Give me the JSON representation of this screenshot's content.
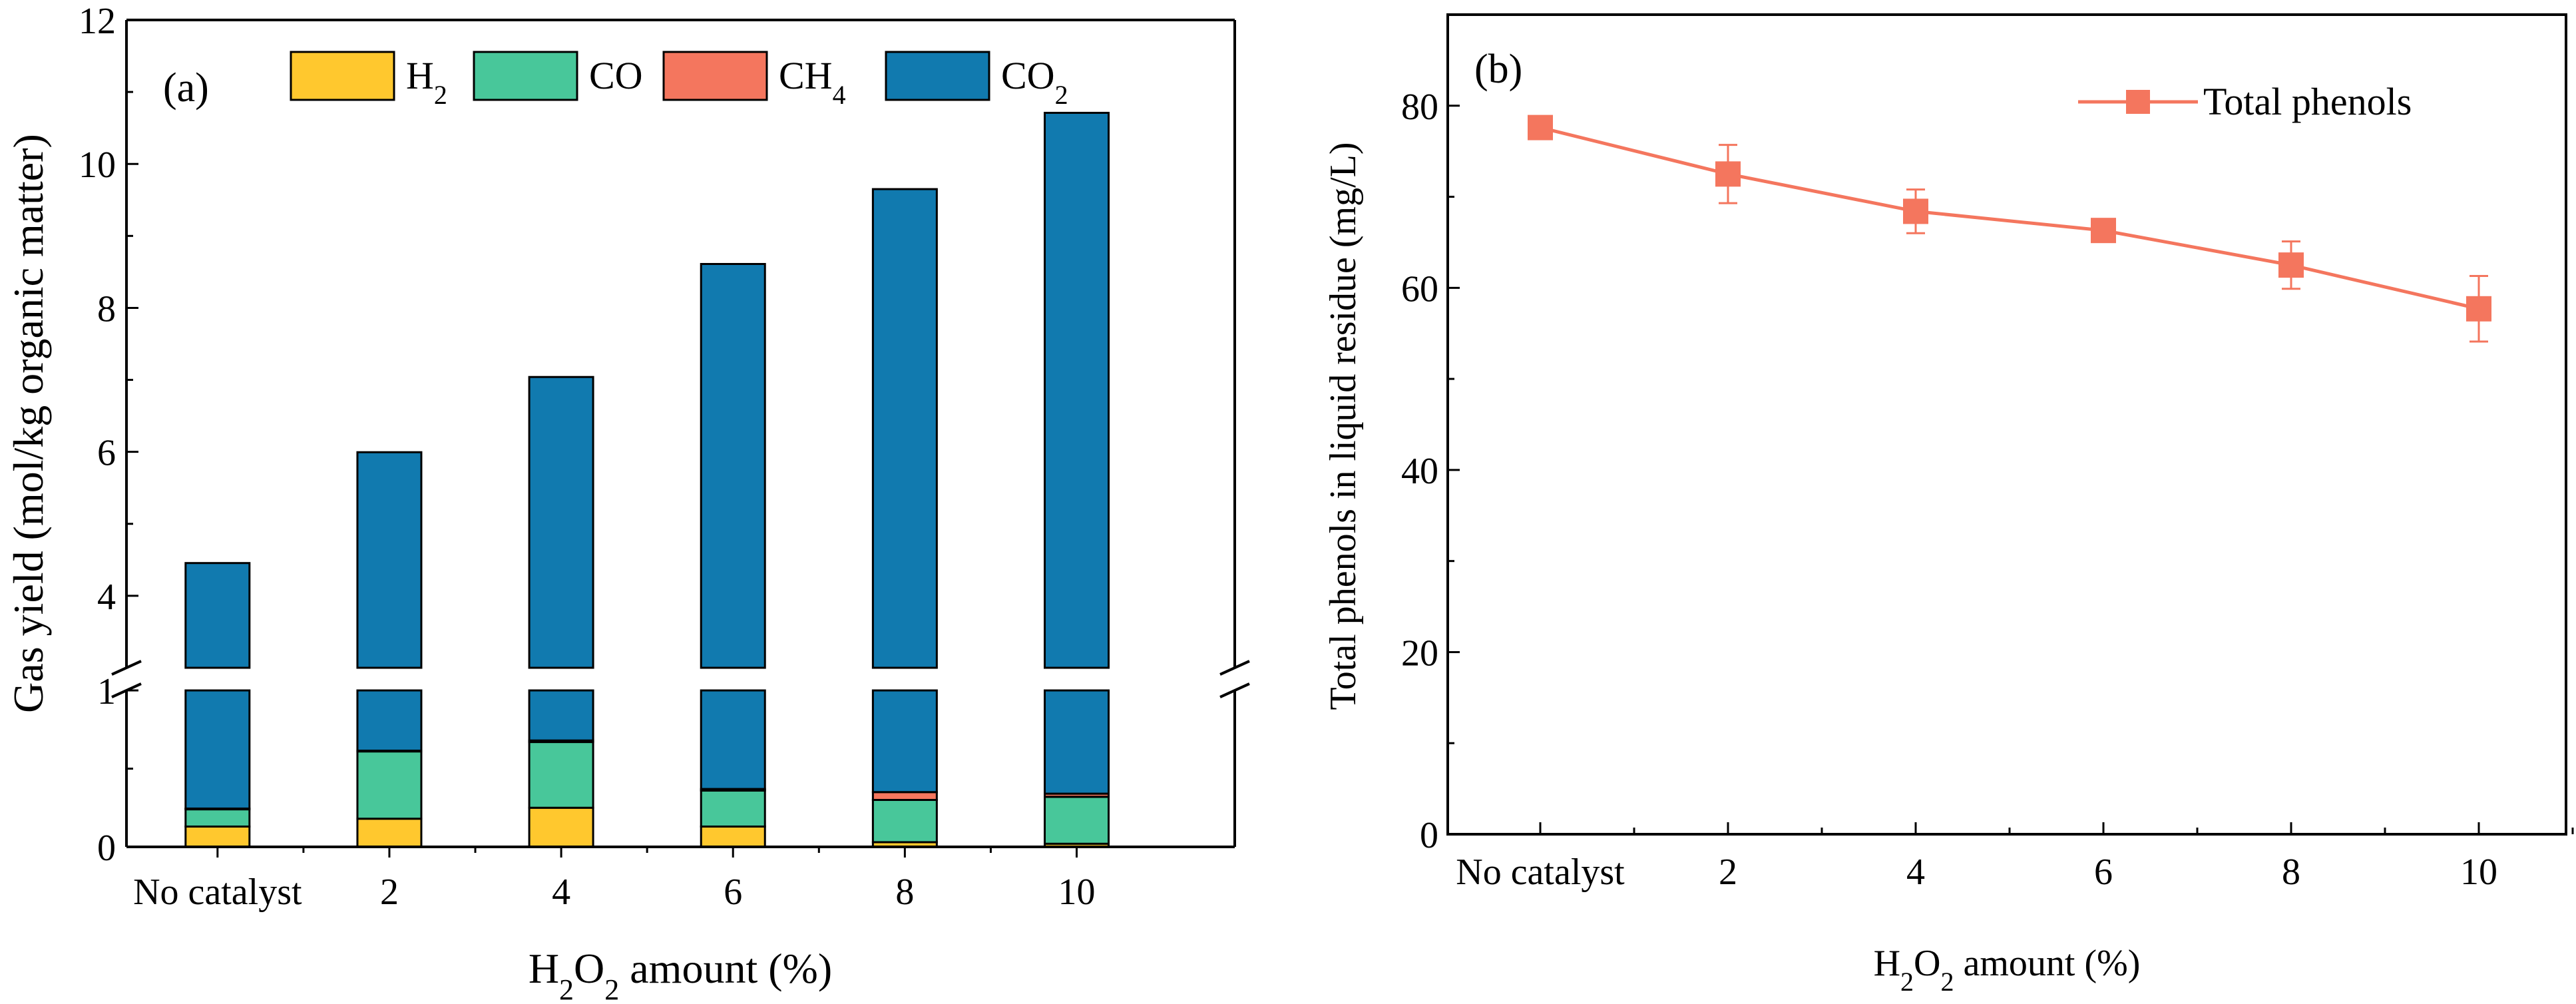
{
  "chart_data": [
    {
      "type": "bar",
      "stacked": true,
      "panel_label": "(a)",
      "categories": [
        "No catalyst",
        "2",
        "4",
        "6",
        "8",
        "10"
      ],
      "series": [
        {
          "name": "H2",
          "name_main": "H",
          "name_sub": "2",
          "color": "#FFC82E",
          "values": [
            0.13,
            0.18,
            0.25,
            0.13,
            0.03,
            0.02
          ]
        },
        {
          "name": "CO",
          "name_main": "CO",
          "name_sub": "",
          "color": "#48C79A",
          "values": [
            0.11,
            0.43,
            0.42,
            0.23,
            0.27,
            0.3
          ]
        },
        {
          "name": "CH4",
          "name_main": "CH",
          "name_sub": "4",
          "color": "#F4765E",
          "values": [
            0.005,
            0.005,
            0.01,
            0.01,
            0.05,
            0.02
          ]
        },
        {
          "name": "CO2",
          "name_main": "CO",
          "name_sub": "2",
          "color": "#117AAF",
          "values": [
            4.21,
            5.38,
            6.36,
            8.24,
            9.3,
            10.37
          ]
        }
      ],
      "totals": [
        4.46,
        5.99,
        7.04,
        8.61,
        9.63,
        10.71
      ],
      "ylabel": "Gas yield (mol/kg organic matter)",
      "xlabel_main": "H",
      "xlabel_sub1": "2",
      "xlabel_mid": "O",
      "xlabel_sub2": "2",
      "xlabel_tail": " amount (%)",
      "y_break": {
        "lower_range": [
          0,
          1
        ],
        "upper_range": [
          3,
          12
        ]
      },
      "y_ticks_lower": [
        {
          "v": 0,
          "label": "0"
        },
        {
          "v": 1,
          "label": "1"
        }
      ],
      "y_ticks_upper": [
        {
          "v": 4,
          "label": "4"
        },
        {
          "v": 6,
          "label": "6"
        },
        {
          "v": 8,
          "label": "8"
        },
        {
          "v": 10,
          "label": "10"
        },
        {
          "v": 12,
          "label": "12"
        }
      ]
    },
    {
      "type": "line",
      "panel_label": "(b)",
      "categories": [
        "No catalyst",
        "2",
        "4",
        "6",
        "8",
        "10"
      ],
      "series": [
        {
          "name": "Total phenols",
          "color": "#F4765E",
          "marker": "square",
          "values": [
            77.6,
            72.5,
            68.4,
            66.3,
            62.5,
            57.7
          ],
          "errors": [
            0.8,
            3.2,
            2.4,
            0.8,
            2.6,
            3.6
          ]
        }
      ],
      "ylabel": "Total phenols in liquid residue (mg/L)",
      "xlabel_main": "H",
      "xlabel_sub1": "2",
      "xlabel_mid": "O",
      "xlabel_sub2": "2",
      "xlabel_tail": " amount (%)",
      "ylim": [
        0,
        90
      ],
      "y_ticks": [
        {
          "v": 0,
          "label": "0"
        },
        {
          "v": 20,
          "label": "20"
        },
        {
          "v": 40,
          "label": "40"
        },
        {
          "v": 60,
          "label": "60"
        },
        {
          "v": 80,
          "label": "80"
        }
      ],
      "legend_position": "top-right"
    }
  ]
}
